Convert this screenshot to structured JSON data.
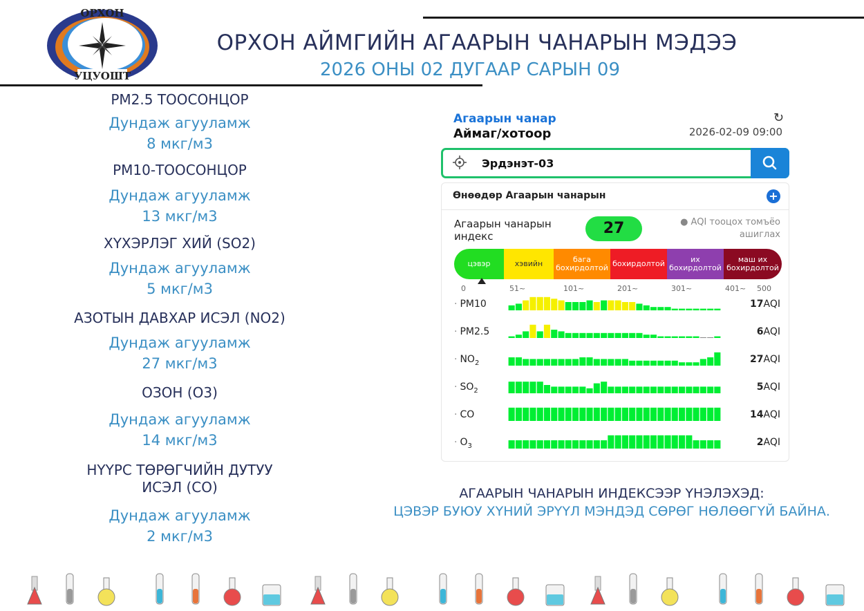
{
  "header": {
    "logo_text_top": "ОРХОН",
    "logo_text_bottom": "УЦУОШТ",
    "title": "ОРХОН АЙМГИЙН АГААРЫН ЧАНАРЫН МЭДЭЭ",
    "date": "2026 ОНЫ 02 ДУГААР САРЫН 09"
  },
  "stats": [
    {
      "name": "PM2.5 ТООСОНЦОР",
      "label": "Дундаж агууламж",
      "value": "8 мкг/м3"
    },
    {
      "name": "PM10-ТООСОНЦОР",
      "label": "Дундаж агууламж",
      "value": "13 мкг/м3"
    },
    {
      "name": "ХҮХЭРЛЭГ ХИЙ (SO2)",
      "label": "Дундаж агууламж",
      "value": "5 мкг/м3"
    },
    {
      "name": "АЗОТЫН ДАВХАР ИСЭЛ (NO2)",
      "label": "Дундаж агууламж",
      "value": "27 мкг/м3"
    },
    {
      "name": "ОЗОН (О3)",
      "label": "Дундаж агууламж",
      "value": "14 мкг/м3"
    },
    {
      "name_line1": "НҮҮРС ТӨРӨГЧИЙН ДУТУУ",
      "name_line2": "ИСЭЛ (CO)",
      "label": "Дундаж агууламж",
      "value": "2 мкг/м3"
    }
  ],
  "app": {
    "title": "Агаарын чанар",
    "subtitle": "Аймаг/хотоор",
    "timestamp": "2026-02-09 09:00",
    "search_value": "Эрдэнэт-03",
    "today_title": "Өнөөдөр Агаарын чанарын",
    "aqi_label": "Агаарын чанарын индекс",
    "aqi_value": "27",
    "aqi_note": "● AQI тооцох томъёо ашиглах",
    "scale": [
      {
        "label": "цэвэр",
        "color": "#22dd22"
      },
      {
        "label": "хэвийн",
        "color": "#ffe600"
      },
      {
        "label": "бага бохирдолтой",
        "color": "#ff8a00"
      },
      {
        "label": "бохирдолтой",
        "color": "#ee1c25"
      },
      {
        "label": "их бохирдолтой",
        "color": "#8e3fae"
      },
      {
        "label": "маш их бохирдолтой",
        "color": "#8b0a22"
      }
    ],
    "ticks": [
      "0",
      "51~",
      "101~",
      "201~",
      "301~",
      "401~",
      "500"
    ],
    "pollutants": [
      {
        "name": "PM10",
        "sub": "",
        "value": "17",
        "unit": "AQI",
        "bars": [
          3,
          4,
          6,
          8,
          8,
          8,
          7,
          6,
          5,
          5,
          5,
          6,
          5,
          6,
          6,
          6,
          5,
          5,
          4,
          3,
          2,
          2,
          2,
          1,
          1,
          1,
          1,
          1,
          1,
          1
        ],
        "colors": [
          "g",
          "g",
          "y",
          "y",
          "y",
          "y",
          "y",
          "y",
          "g",
          "g",
          "g",
          "g",
          "y",
          "g",
          "y",
          "y",
          "y",
          "y",
          "g",
          "g",
          "g",
          "g",
          "g",
          "g",
          "g",
          "g",
          "g",
          "g",
          "g",
          "g"
        ]
      },
      {
        "name": "PM2.5",
        "sub": "",
        "value": "6",
        "unit": "AQI",
        "bars": [
          1,
          2,
          4,
          8,
          4,
          8,
          5,
          4,
          3,
          3,
          3,
          3,
          3,
          3,
          3,
          3,
          3,
          3,
          3,
          2,
          2,
          1,
          1,
          1,
          1,
          1,
          1,
          0,
          0,
          1
        ],
        "colors": [
          "g",
          "g",
          "g",
          "y",
          "g",
          "y",
          "g",
          "g",
          "g",
          "g",
          "g",
          "g",
          "g",
          "g",
          "g",
          "g",
          "g",
          "g",
          "g",
          "g",
          "g",
          "g",
          "g",
          "g",
          "g",
          "g",
          "g",
          "g",
          "g",
          "g"
        ]
      },
      {
        "name": "NO",
        "sub": "2",
        "value": "27",
        "unit": "AQI",
        "bars": [
          5,
          5,
          4,
          4,
          4,
          4,
          4,
          4,
          4,
          4,
          5,
          5,
          4,
          4,
          4,
          4,
          4,
          3,
          3,
          3,
          3,
          3,
          3,
          3,
          2,
          2,
          2,
          4,
          5,
          8
        ],
        "colors": [
          "g",
          "g",
          "g",
          "g",
          "g",
          "g",
          "g",
          "g",
          "g",
          "g",
          "g",
          "g",
          "g",
          "g",
          "g",
          "g",
          "g",
          "g",
          "g",
          "g",
          "g",
          "g",
          "g",
          "g",
          "g",
          "g",
          "g",
          "g",
          "g",
          "g"
        ]
      },
      {
        "name": "SO",
        "sub": "2",
        "value": "5",
        "unit": "AQI",
        "bars": [
          7,
          7,
          7,
          7,
          7,
          5,
          4,
          4,
          4,
          4,
          4,
          3,
          6,
          7,
          4,
          4,
          4,
          4,
          4,
          4,
          4,
          4,
          4,
          4,
          4,
          4,
          4,
          4,
          4,
          4
        ],
        "colors": [
          "g",
          "g",
          "g",
          "g",
          "g",
          "g",
          "g",
          "g",
          "g",
          "g",
          "g",
          "g",
          "g",
          "g",
          "g",
          "g",
          "g",
          "g",
          "g",
          "g",
          "g",
          "g",
          "g",
          "g",
          "g",
          "g",
          "g",
          "g",
          "g",
          "g"
        ]
      },
      {
        "name": "CO",
        "sub": "",
        "value": "14",
        "unit": "AQI",
        "bars": [
          8,
          8,
          8,
          8,
          8,
          8,
          8,
          8,
          8,
          8,
          8,
          8,
          8,
          8,
          8,
          8,
          8,
          8,
          8,
          8,
          8,
          8,
          8,
          8,
          8,
          8,
          8,
          8,
          8,
          8
        ],
        "colors": [
          "g",
          "g",
          "g",
          "g",
          "g",
          "g",
          "g",
          "g",
          "g",
          "g",
          "g",
          "g",
          "g",
          "g",
          "g",
          "g",
          "g",
          "g",
          "g",
          "g",
          "g",
          "g",
          "g",
          "g",
          "g",
          "g",
          "g",
          "g",
          "g",
          "g"
        ]
      },
      {
        "name": "O",
        "sub": "3",
        "value": "2",
        "unit": "AQI",
        "bars": [
          5,
          5,
          5,
          5,
          5,
          5,
          5,
          5,
          5,
          5,
          5,
          5,
          5,
          5,
          8,
          8,
          8,
          8,
          8,
          8,
          8,
          8,
          8,
          8,
          8,
          8,
          5,
          5,
          5,
          5
        ],
        "colors": [
          "g",
          "g",
          "g",
          "g",
          "g",
          "g",
          "g",
          "g",
          "g",
          "g",
          "g",
          "g",
          "g",
          "g",
          "g",
          "g",
          "g",
          "g",
          "g",
          "g",
          "g",
          "g",
          "g",
          "g",
          "g",
          "g",
          "g",
          "g",
          "g",
          "g"
        ]
      }
    ]
  },
  "verdict": {
    "line1": "АГААРЫН ЧАНАРЫН ИНДЕКСЭЭР ҮНЭЛЭХЭД:",
    "line2": "ЦЭВЭР БУЮУ ХҮНИЙ ЭРҮҮЛ МЭНДЭД СӨРӨГ НӨЛӨӨГҮЙ БАЙНА."
  },
  "colors": {
    "green": "#00ee33",
    "yellow": "#f5f000",
    "title_blue": "#27305a",
    "light_blue": "#3b8fc4"
  }
}
